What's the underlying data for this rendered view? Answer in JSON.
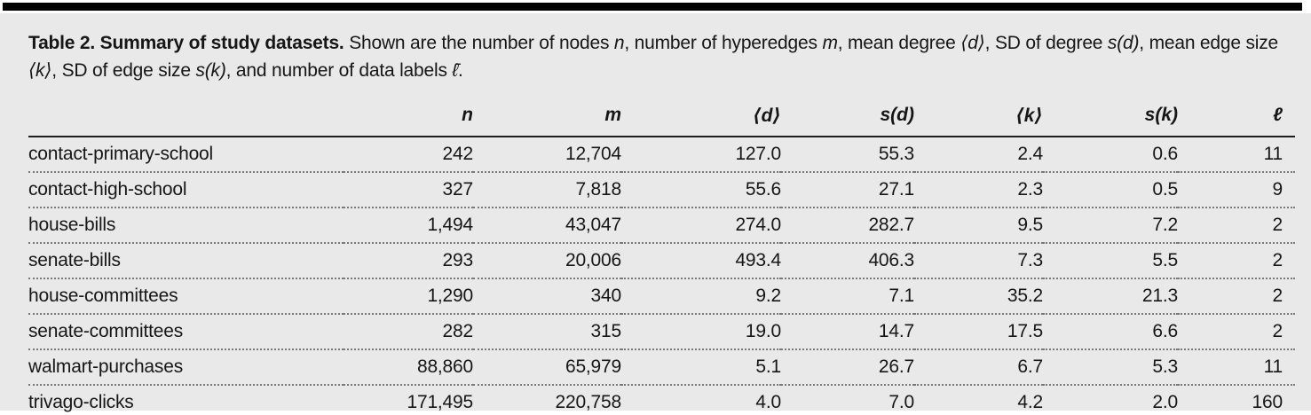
{
  "page": {
    "background": "#ffffff",
    "panel_background": "#e9e9e9",
    "top_bar_color": "#000000",
    "text_color": "#161616",
    "header_rule_color": "#1d1d1d",
    "dotted_rule_color": "#787878"
  },
  "caption": {
    "segments": [
      {
        "text": "Table 2. Summary of study datasets.",
        "bold": true
      },
      {
        "text": " Shown are the number of nodes "
      },
      {
        "text": "n",
        "italic": true
      },
      {
        "text": ", number of hyperedges "
      },
      {
        "text": "m",
        "italic": true
      },
      {
        "text": ", mean degree "
      },
      {
        "text": "⟨d⟩",
        "italic": true
      },
      {
        "text": ", SD of degree "
      },
      {
        "text": "s(d)",
        "italic": true
      },
      {
        "text": ", mean edge size "
      },
      {
        "text": "⟨k⟩",
        "italic": true
      },
      {
        "text": ", SD of edge size "
      },
      {
        "text": "s(k)",
        "italic": true
      },
      {
        "text": ", and number of data labels "
      },
      {
        "text": "ℓ̄",
        "italic": true
      },
      {
        "text": "."
      }
    ]
  },
  "table": {
    "columns": [
      {
        "key": "name",
        "label": "",
        "align": "left"
      },
      {
        "key": "n",
        "label": "n",
        "align": "right"
      },
      {
        "key": "m",
        "label": "m",
        "align": "right"
      },
      {
        "key": "d",
        "label": "⟨d⟩",
        "align": "right"
      },
      {
        "key": "sd",
        "label": "s(d)",
        "align": "right"
      },
      {
        "key": "k",
        "label": "⟨k⟩",
        "align": "right"
      },
      {
        "key": "sk",
        "label": "s(k)",
        "align": "right"
      },
      {
        "key": "l",
        "label": "ℓ",
        "align": "right"
      }
    ],
    "rows": [
      [
        "contact-primary-school",
        "242",
        "12,704",
        "127.0",
        "55.3",
        "2.4",
        "0.6",
        "11"
      ],
      [
        "contact-high-school",
        "327",
        "7,818",
        "55.6",
        "27.1",
        "2.3",
        "0.5",
        "9"
      ],
      [
        "house-bills",
        "1,494",
        "43,047",
        "274.0",
        "282.7",
        "9.5",
        "7.2",
        "2"
      ],
      [
        "senate-bills",
        "293",
        "20,006",
        "493.4",
        "406.3",
        "7.3",
        "5.5",
        "2"
      ],
      [
        "house-committees",
        "1,290",
        "340",
        "9.2",
        "7.1",
        "35.2",
        "21.3",
        "2"
      ],
      [
        "senate-committees",
        "282",
        "315",
        "19.0",
        "14.7",
        "17.5",
        "6.6",
        "2"
      ],
      [
        "walmart-purchases",
        "88,860",
        "65,979",
        "5.1",
        "26.7",
        "6.7",
        "5.3",
        "11"
      ],
      [
        "trivago-clicks",
        "171,495",
        "220,758",
        "4.0",
        "7.0",
        "4.2",
        "2.0",
        "160"
      ]
    ]
  }
}
